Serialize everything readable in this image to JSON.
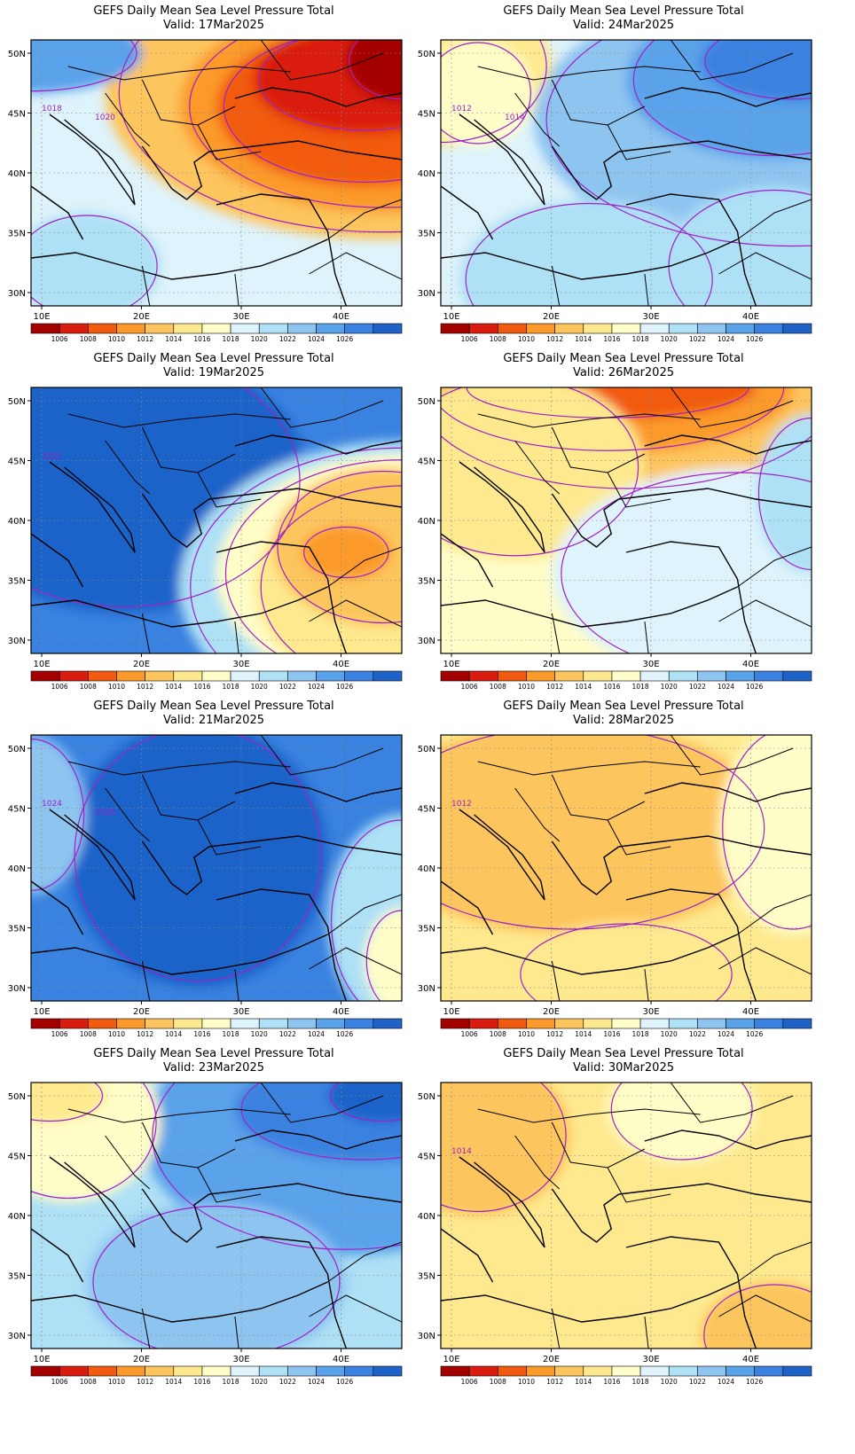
{
  "panels": [
    {
      "title": "GEFS Daily Mean Sea Level Pressure Total",
      "valid": "Valid: 17Mar2025",
      "labels": [
        "1018",
        "1020"
      ],
      "pattern": "low-east"
    },
    {
      "title": "GEFS Daily Mean Sea Level Pressure Total",
      "valid": "Valid: 24Mar2025",
      "labels": [
        "1012",
        "1014"
      ],
      "pattern": "weak-high-ne"
    },
    {
      "title": "GEFS Daily Mean Sea Level Pressure Total",
      "valid": "Valid: 19Mar2025",
      "labels": [
        "1022"
      ],
      "pattern": "high-west"
    },
    {
      "title": "GEFS Daily Mean Sea Level Pressure Total",
      "valid": "Valid: 26Mar2025",
      "labels": [],
      "pattern": "low-north"
    },
    {
      "title": "GEFS Daily Mean Sea Level Pressure Total",
      "valid": "Valid: 21Mar2025",
      "labels": [
        "1024",
        "1026"
      ],
      "pattern": "high-center"
    },
    {
      "title": "GEFS Daily Mean Sea Level Pressure Total",
      "valid": "Valid: 28Mar2025",
      "labels": [
        "1012"
      ],
      "pattern": "flat-low"
    },
    {
      "title": "GEFS Daily Mean Sea Level Pressure Total",
      "valid": "Valid: 23Mar2025",
      "labels": [],
      "pattern": "high-ne"
    },
    {
      "title": "GEFS Daily Mean Sea Level Pressure Total",
      "valid": "Valid: 30Mar2025",
      "labels": [
        "1014"
      ],
      "pattern": "flat-mid"
    }
  ],
  "axes": {
    "x_ticks": [
      "10E",
      "20E",
      "30E",
      "40E"
    ],
    "y_ticks": [
      "50N",
      "45N",
      "40N",
      "35N",
      "30N"
    ]
  },
  "colorbar": {
    "labels": [
      "1006",
      "1008",
      "1010",
      "1012",
      "1014",
      "1016",
      "1018",
      "1020",
      "1022",
      "1024",
      "1026"
    ],
    "colors": [
      "#a50000",
      "#d91c0e",
      "#f25a0f",
      "#fb9a2b",
      "#fdc55d",
      "#fee98f",
      "#fffdc8",
      "#def3fb",
      "#aee0f6",
      "#8ec4f0",
      "#5aa2ea",
      "#3a82e0",
      "#1f63c9"
    ]
  }
}
